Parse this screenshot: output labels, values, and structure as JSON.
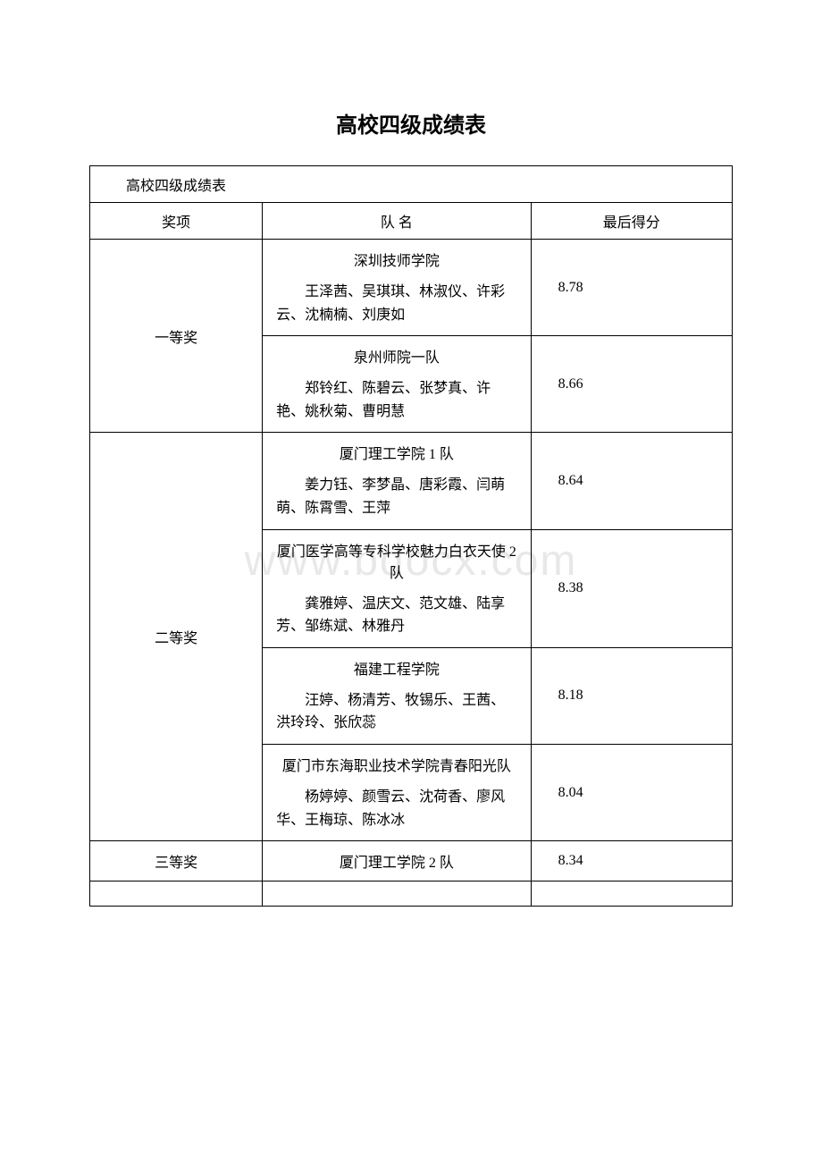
{
  "title": "高校四级成绩表",
  "watermark": "www.bdocx.com",
  "table": {
    "caption": "高校四级成绩表",
    "headers": {
      "award": "奖项",
      "team": "队 名",
      "score": "最后得分"
    },
    "groups": [
      {
        "award": "一等奖",
        "rows": [
          {
            "team_name": "深圳技师学院",
            "members": "王泽茜、吴琪琪、林淑仪、许彩云、沈楠楠、刘庚如",
            "score": "8.78"
          },
          {
            "team_name": "泉州师院一队",
            "members": "郑铃红、陈碧云、张梦真、许 艳、姚秋菊、曹明慧",
            "score": "8.66"
          }
        ]
      },
      {
        "award": "二等奖",
        "rows": [
          {
            "team_name": "厦门理工学院 1 队",
            "members": "姜力钰、李梦晶、唐彩霞、闫萌萌、陈霄雪、王萍",
            "score": "8.64"
          },
          {
            "team_name": "厦门医学高等专科学校魅力白衣天使 2 队",
            "members": "龚雅婷、温庆文、范文雄、陆享芳、邹练斌、林雅丹",
            "score": "8.38"
          },
          {
            "team_name": "福建工程学院",
            "members": "汪婷、杨清芳、牧锡乐、王茜、洪玲玲、张欣蕊",
            "score": "8.18"
          },
          {
            "team_name": "厦门市东海职业技术学院青春阳光队",
            "members": "杨婷婷、颜雪云、沈荷香、廖风华、王梅琼、陈冰冰",
            "score": "8.04"
          }
        ]
      },
      {
        "award": "三等奖",
        "rows": [
          {
            "team_name": "厦门理工学院 2 队",
            "members": "",
            "score": "8.34"
          }
        ]
      }
    ]
  }
}
